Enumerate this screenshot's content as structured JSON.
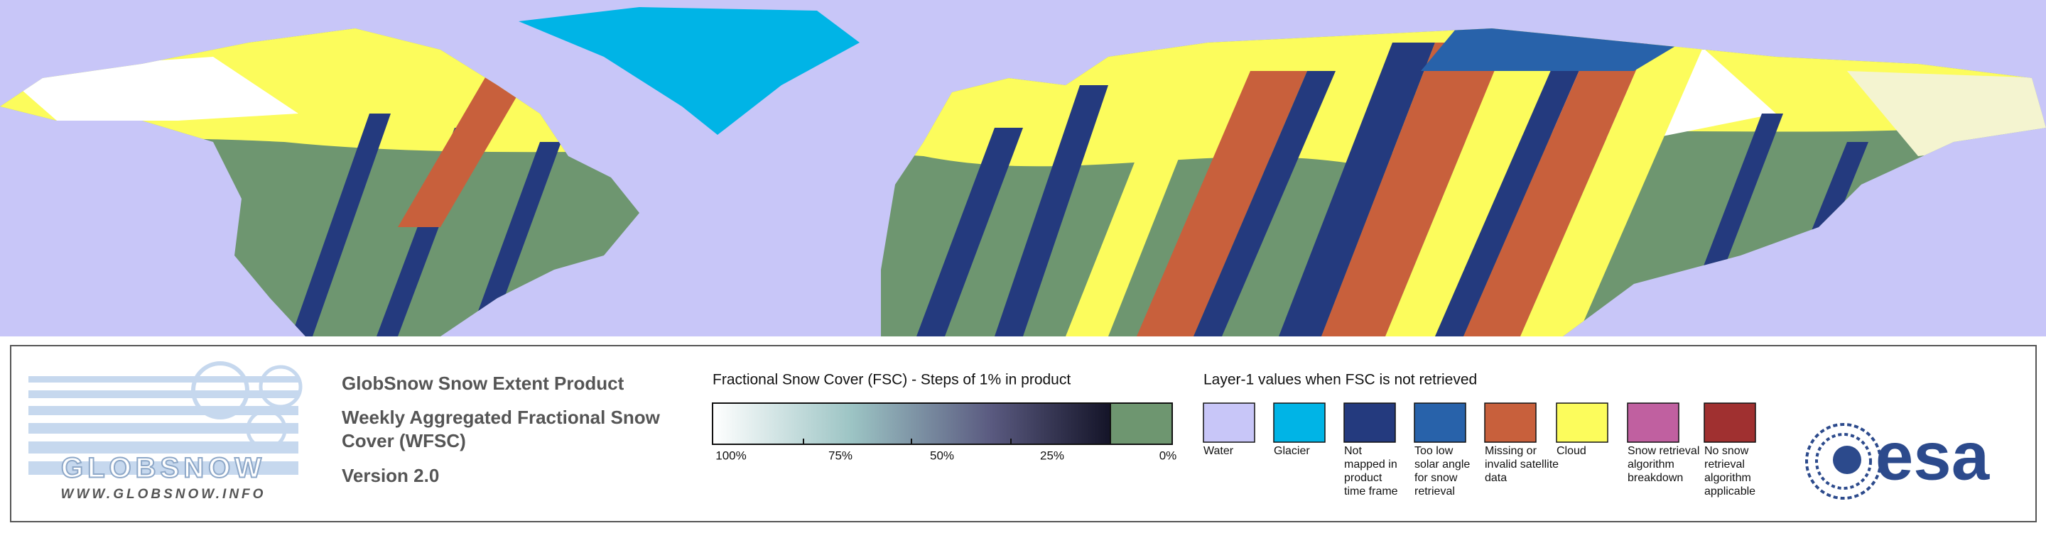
{
  "header": {
    "title": "GlobSnow Snow Extent Product",
    "subtitle": [
      "Weekly Aggregated Fractional Snow",
      "Cover (WFSC)"
    ],
    "version": "Version 2.0"
  },
  "logo": {
    "name": "GLOBSNOW",
    "url": "WWW.GLOBSNOW.INFO",
    "agency": "esa"
  },
  "fsc_legend": {
    "title": "Fractional Snow Cover (FSC) - Steps of 1% in product",
    "ticks": [
      "100%",
      "75%",
      "50%",
      "25%",
      "0%"
    ]
  },
  "layer1_legend": {
    "title": "Layer-1 values when FSC is not retrieved",
    "items": [
      {
        "label": [
          "Water"
        ],
        "color": "#c8c6f8"
      },
      {
        "label": [
          "Glacier"
        ],
        "color": "#00b4e6"
      },
      {
        "label": [
          "Not",
          "mapped in",
          "product",
          "time frame"
        ],
        "color": "#243a7e"
      },
      {
        "label": [
          "Too low",
          "solar angle",
          "for snow",
          "retrieval"
        ],
        "color": "#2862aa"
      },
      {
        "label": [
          "Missing or",
          "invalid satellite",
          "data"
        ],
        "color": "#c8603c"
      },
      {
        "label": [
          "Cloud"
        ],
        "color": "#fcfc5c"
      },
      {
        "label": [
          "Snow retrieval",
          "algorithm",
          "breakdown"
        ],
        "color": "#c060a0"
      },
      {
        "label": [
          "No snow",
          "retrieval",
          "algorithm",
          "applicable"
        ],
        "color": "#a03030"
      }
    ]
  }
}
